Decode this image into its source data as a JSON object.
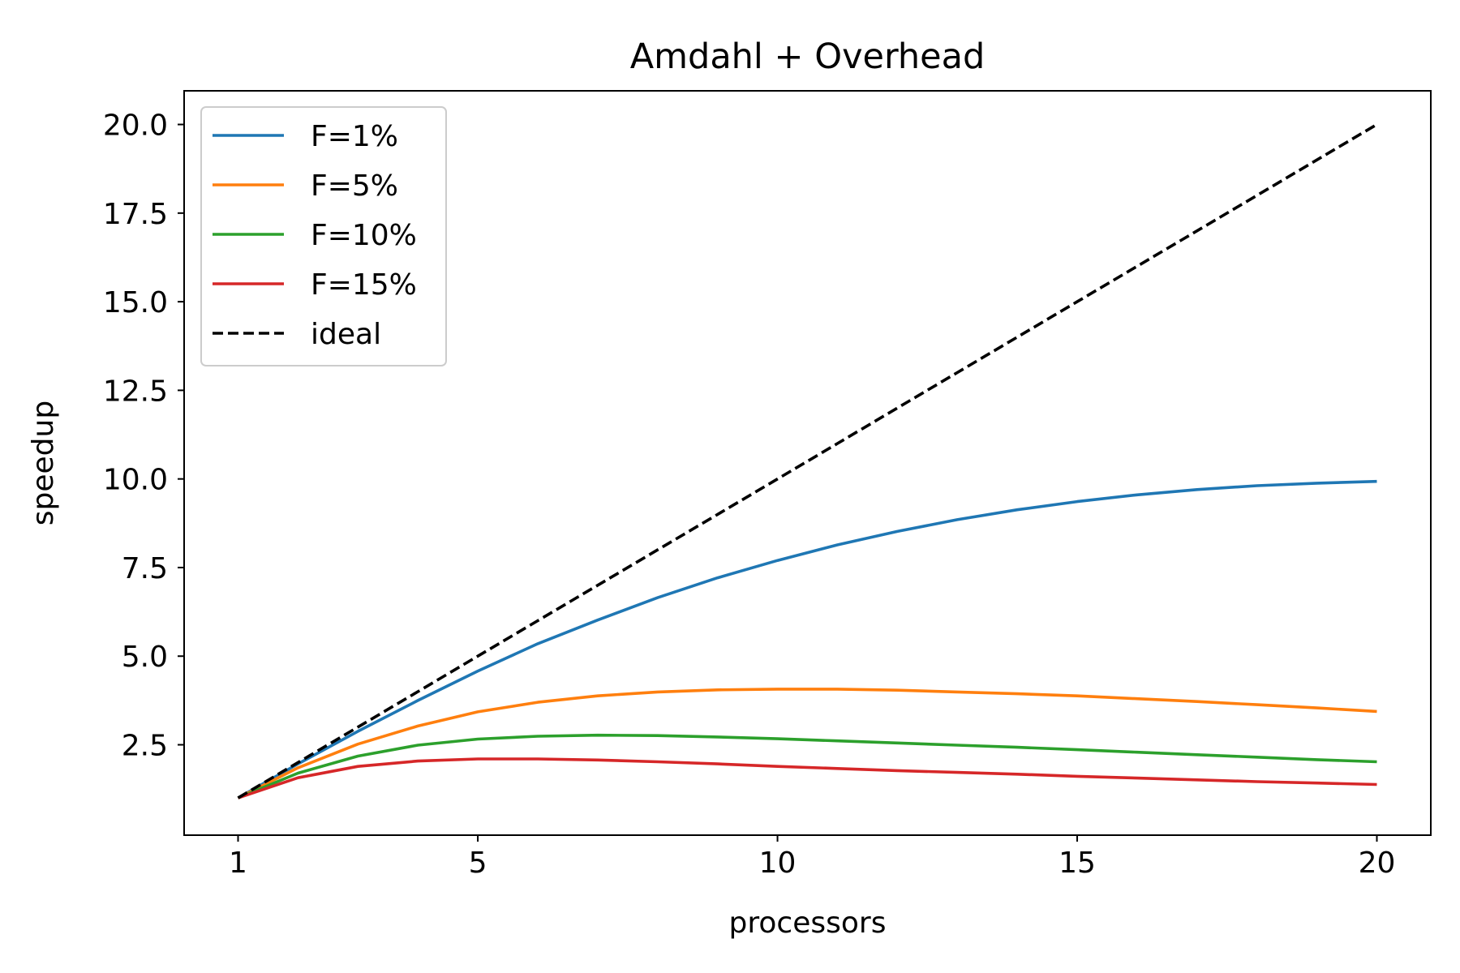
{
  "chart_data": {
    "type": "line",
    "title": "Amdahl + Overhead",
    "xlabel": "processors",
    "ylabel": "speedup",
    "xlim": [
      0.1,
      20.9
    ],
    "ylim": [
      -0.05,
      20.95
    ],
    "x_ticks": [
      {
        "value": 1,
        "label": "1"
      },
      {
        "value": 5,
        "label": "5"
      },
      {
        "value": 10,
        "label": "10"
      },
      {
        "value": 15,
        "label": "15"
      },
      {
        "value": 20,
        "label": "20"
      }
    ],
    "y_ticks": [
      {
        "value": 2.5,
        "label": "2.5"
      },
      {
        "value": 5.0,
        "label": "5.0"
      },
      {
        "value": 7.5,
        "label": "7.5"
      },
      {
        "value": 10.0,
        "label": "10.0"
      },
      {
        "value": 12.5,
        "label": "12.5"
      },
      {
        "value": 15.0,
        "label": "15.0"
      },
      {
        "value": 17.5,
        "label": "17.5"
      },
      {
        "value": 20.0,
        "label": "20.0"
      }
    ],
    "grid": false,
    "legend_position": "upper-left",
    "x": [
      1,
      2,
      3,
      4,
      5,
      6,
      7,
      8,
      9,
      10,
      11,
      12,
      13,
      14,
      15,
      16,
      17,
      18,
      19,
      20
    ],
    "series": [
      {
        "name": "F=1%",
        "color": "#1f77b4",
        "dash": "solid",
        "values": [
          1.0,
          1.96,
          2.88,
          3.75,
          4.58,
          5.35,
          6.02,
          6.65,
          7.21,
          7.7,
          8.14,
          8.52,
          8.85,
          9.13,
          9.36,
          9.55,
          9.7,
          9.81,
          9.88,
          9.93
        ]
      },
      {
        "name": "F=5%",
        "color": "#ff7f0e",
        "dash": "solid",
        "values": [
          1.0,
          1.85,
          2.52,
          3.03,
          3.43,
          3.7,
          3.88,
          3.99,
          4.05,
          4.07,
          4.07,
          4.04,
          3.99,
          3.94,
          3.88,
          3.8,
          3.72,
          3.63,
          3.54,
          3.44
        ]
      },
      {
        "name": "F=10%",
        "color": "#2ca02c",
        "dash": "solid",
        "values": [
          1.0,
          1.7,
          2.18,
          2.49,
          2.66,
          2.74,
          2.77,
          2.76,
          2.72,
          2.67,
          2.61,
          2.55,
          2.49,
          2.43,
          2.36,
          2.29,
          2.22,
          2.15,
          2.08,
          2.02
        ]
      },
      {
        "name": "F=15%",
        "color": "#d62728",
        "dash": "solid",
        "values": [
          1.0,
          1.57,
          1.89,
          2.04,
          2.1,
          2.1,
          2.07,
          2.02,
          1.96,
          1.89,
          1.83,
          1.77,
          1.72,
          1.67,
          1.61,
          1.56,
          1.51,
          1.46,
          1.42,
          1.38
        ]
      },
      {
        "name": "ideal",
        "color": "#000000",
        "dash": "dashed",
        "values": [
          1,
          2,
          3,
          4,
          5,
          6,
          7,
          8,
          9,
          10,
          11,
          12,
          13,
          14,
          15,
          16,
          17,
          18,
          19,
          20
        ]
      }
    ]
  }
}
